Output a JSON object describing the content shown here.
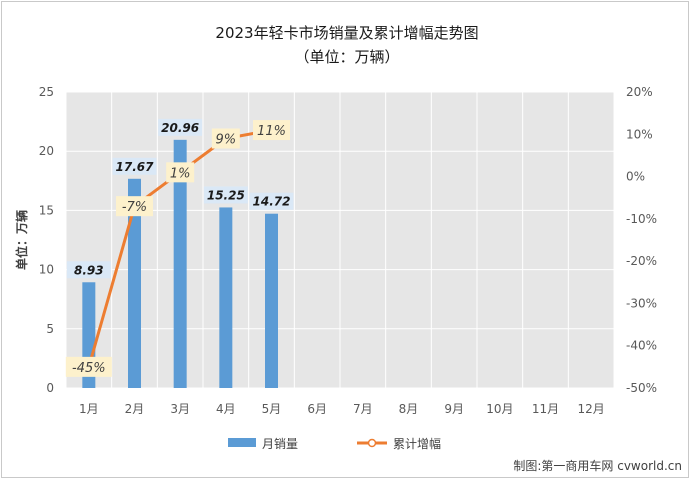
{
  "chart_data": {
    "type": "bar",
    "title": "2023年轻卡市场销量及累计增幅走势图",
    "subtitle": "（单位：万辆）",
    "ylabel": "单位：万辆",
    "categories": [
      "1月",
      "2月",
      "3月",
      "4月",
      "5月",
      "6月",
      "7月",
      "8月",
      "9月",
      "10月",
      "11月",
      "12月"
    ],
    "series": [
      {
        "name": "月销量",
        "type": "bar",
        "axis": "left",
        "color": "#5b9bd5",
        "values": [
          8.93,
          17.67,
          20.96,
          15.25,
          14.72,
          null,
          null,
          null,
          null,
          null,
          null,
          null
        ],
        "labels": [
          "8.93",
          "17.67",
          "20.96",
          "15.25",
          "14.72"
        ]
      },
      {
        "name": "累计增幅",
        "type": "line",
        "axis": "right",
        "color": "#ed7d31",
        "values": [
          -45,
          -7,
          1,
          9,
          11,
          null,
          null,
          null,
          null,
          null,
          null,
          null
        ],
        "labels": [
          "-45%",
          "-7%",
          "1%",
          "9%",
          "11%"
        ]
      }
    ],
    "left_axis": {
      "ylim": [
        0,
        25
      ],
      "ticks": [
        "0",
        "5",
        "10",
        "15",
        "20",
        "25"
      ]
    },
    "right_axis": {
      "ylim": [
        -50,
        20
      ],
      "ticks": [
        "-50%",
        "-40%",
        "-30%",
        "-20%",
        "-10%",
        "0%",
        "10%",
        "20%"
      ]
    },
    "grid": true,
    "legend": "bottom"
  },
  "credit": "制图:第一商用车网 cvworld.cn"
}
